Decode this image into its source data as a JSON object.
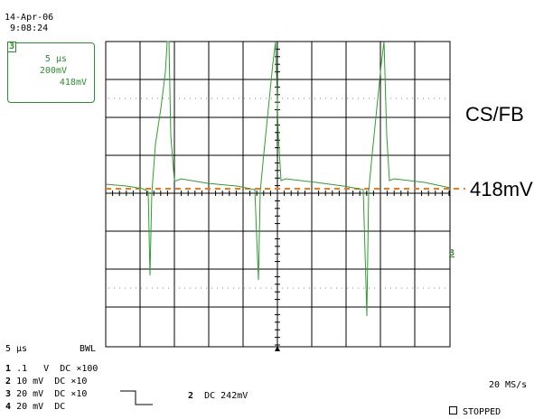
{
  "timestamp": {
    "date": "14-Apr-06",
    "time": "9:08:24"
  },
  "channel_box": {
    "channel": "3",
    "timebase": "5 µs",
    "volts_div": "200mV",
    "level": "418mV"
  },
  "annotations": {
    "trace_label": "CS/FB",
    "level_label": "418mV",
    "ground_marker": "3"
  },
  "bottom": {
    "timebase": "5 µs",
    "bwl": "BWL",
    "channels": [
      {
        "num": "1",
        "scale": ".1",
        "unit": "V",
        "coupling": "DC",
        "probe": "×100"
      },
      {
        "num": "2",
        "scale": "10",
        "unit": "mV",
        "coupling": "DC",
        "probe": "×10"
      },
      {
        "num": "3",
        "scale": "20",
        "unit": "mV",
        "coupling": "DC",
        "probe": "×10"
      },
      {
        "num": "4",
        "scale": "20",
        "unit": "mV",
        "coupling": "DC",
        "probe": ""
      }
    ],
    "trigger": {
      "channel": "2",
      "coupling": "DC",
      "level": "242mV"
    },
    "sample_rate": "20 MS/s",
    "status": "STOPPED"
  },
  "colors": {
    "trace": "#2e9e2e",
    "level_line": "#f07a1a",
    "box": "#2e8b2e",
    "grid": "#000000"
  }
}
